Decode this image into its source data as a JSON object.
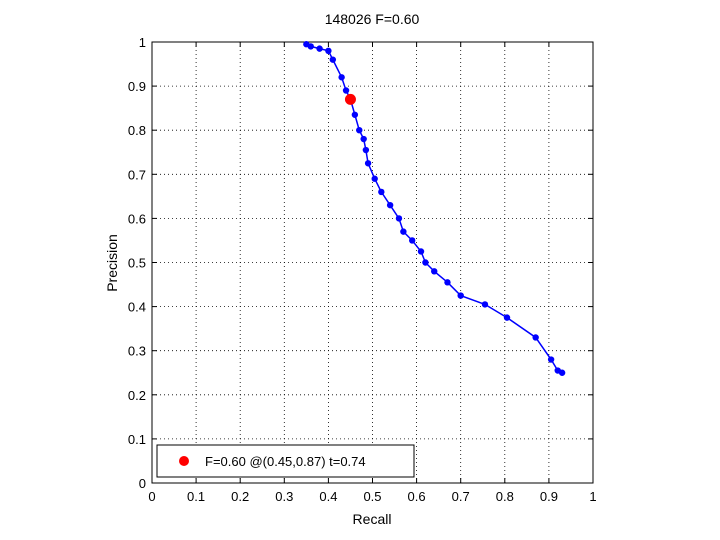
{
  "chart_data": {
    "type": "line",
    "title": "148026 F=0.60",
    "xlabel": "Recall",
    "ylabel": "Precision",
    "xlim": [
      0,
      1
    ],
    "ylim": [
      0,
      1
    ],
    "grid": true,
    "x_ticks": [
      "0",
      "0.1",
      "0.2",
      "0.3",
      "0.4",
      "0.5",
      "0.6",
      "0.7",
      "0.8",
      "0.9",
      "1"
    ],
    "y_ticks": [
      "0",
      "0.1",
      "0.2",
      "0.3",
      "0.4",
      "0.5",
      "0.6",
      "0.7",
      "0.8",
      "0.9",
      "1"
    ],
    "series": [
      {
        "color": "#0000ff",
        "points": [
          [
            0.35,
            0.995
          ],
          [
            0.36,
            0.99
          ],
          [
            0.38,
            0.985
          ],
          [
            0.4,
            0.98
          ],
          [
            0.41,
            0.96
          ],
          [
            0.43,
            0.92
          ],
          [
            0.44,
            0.89
          ],
          [
            0.45,
            0.87
          ],
          [
            0.46,
            0.835
          ],
          [
            0.47,
            0.8
          ],
          [
            0.48,
            0.78
          ],
          [
            0.485,
            0.755
          ],
          [
            0.49,
            0.725
          ],
          [
            0.505,
            0.69
          ],
          [
            0.52,
            0.66
          ],
          [
            0.54,
            0.63
          ],
          [
            0.56,
            0.6
          ],
          [
            0.57,
            0.57
          ],
          [
            0.59,
            0.55
          ],
          [
            0.61,
            0.525
          ],
          [
            0.62,
            0.5
          ],
          [
            0.64,
            0.48
          ],
          [
            0.67,
            0.455
          ],
          [
            0.7,
            0.425
          ],
          [
            0.755,
            0.405
          ],
          [
            0.805,
            0.375
          ],
          [
            0.87,
            0.33
          ],
          [
            0.905,
            0.28
          ],
          [
            0.92,
            0.255
          ],
          [
            0.93,
            0.25
          ]
        ]
      }
    ],
    "highlight": {
      "x": 0.45,
      "y": 0.87,
      "color": "#ff0000"
    },
    "legend": {
      "position": "bottom-left",
      "label": "F=0.60 @(0.45,0.87) t=0.74"
    }
  }
}
